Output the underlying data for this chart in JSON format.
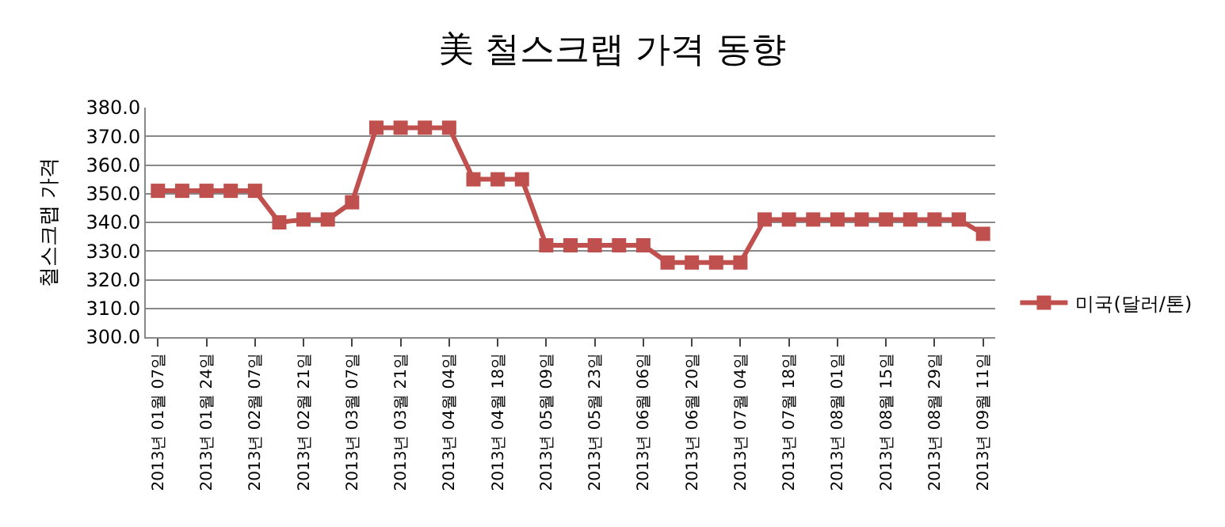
{
  "chart_data": {
    "type": "line",
    "title": "美 철스크랩 가격 동향",
    "ylabel": "철스크랩 가격",
    "categories": [
      "2013년 01월 07일",
      null,
      "2013년 01월 24일",
      null,
      "2013년 02월 07일",
      null,
      "2013년 02월 21일",
      null,
      "2013년 03월 07일",
      null,
      "2013년 03월 21일",
      null,
      "2013년 04월 04일",
      null,
      "2013년 04월 18일",
      null,
      "2013년 05월 09일",
      null,
      "2013년 05월 23일",
      null,
      "2013년 06월 06일",
      null,
      "2013년 06월 20일",
      null,
      "2013년 07월 04일",
      null,
      "2013년 07월 18일",
      null,
      "2013년 08월 01일",
      null,
      "2013년 08월 15일",
      null,
      "2013년 08월 29일",
      null,
      "2013년 09월 11일"
    ],
    "series": [
      {
        "name": "미국(달러/톤)",
        "color": "#c0504d",
        "values": [
          351,
          351,
          351,
          351,
          351,
          340,
          341,
          341,
          347,
          373,
          373,
          373,
          373,
          355,
          355,
          355,
          332,
          332,
          332,
          332,
          332,
          326,
          326,
          326,
          326,
          341,
          341,
          341,
          341,
          341,
          341,
          341,
          341,
          341,
          336
        ]
      }
    ],
    "ylim": [
      300,
      380
    ],
    "yticks": [
      {
        "value": 300,
        "label": "300.0"
      },
      {
        "value": 310,
        "label": "310.0"
      },
      {
        "value": 320,
        "label": "320.0"
      },
      {
        "value": 330,
        "label": "330.0"
      },
      {
        "value": 340,
        "label": "340.0"
      },
      {
        "value": 350,
        "label": "350.0"
      },
      {
        "value": 360,
        "label": "360.0"
      },
      {
        "value": 370,
        "label": "370.0"
      },
      {
        "value": 380,
        "label": "380.0"
      }
    ],
    "grid": "y",
    "legend": "right",
    "marker": "square",
    "line_style": "solid"
  }
}
